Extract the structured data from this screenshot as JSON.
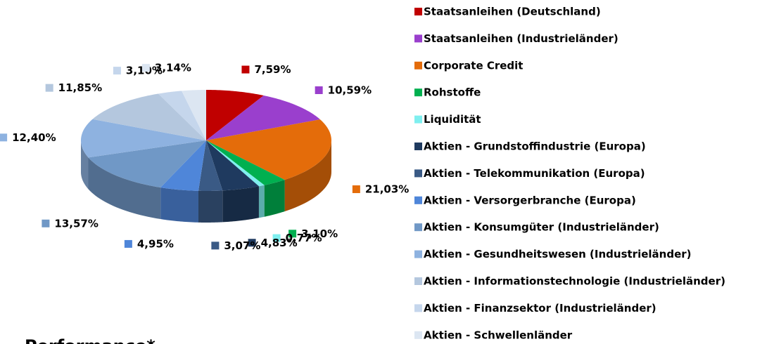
{
  "heading": "Performance*",
  "chart_data": {
    "type": "pie3d",
    "categories": [
      "Staatsanleihen (Deutschland)",
      "Staatsanleihen (Industrieländer)",
      "Corporate Credit",
      "Rohstoffe",
      "Liquidität",
      "Aktien - Grundstoffindustrie (Europa)",
      "Aktien - Telekommunikation (Europa)",
      "Aktien - Versorgerbranche (Europa)",
      "Aktien - Konsumgüter (Industrieländer)",
      "Aktien - Gesundheitswesen (Industrieländer)",
      "Aktien - Informationstechnologie (Industrieländer)",
      "Aktien - Finanzsektor (Industrieländer)",
      "Aktien - Schwellenländer"
    ],
    "values": [
      7.59,
      10.59,
      21.03,
      3.1,
      0.77,
      4.83,
      3.07,
      4.95,
      13.57,
      12.4,
      11.85,
      3.1,
      3.14
    ],
    "value_labels": [
      "7,59%",
      "10,59%",
      "21,03%",
      "3,10%",
      "0,77%",
      "4,83%",
      "3,07%",
      "4,95%",
      "13,57%",
      "12,40%",
      "11,85%",
      "3,10%",
      "3,14%"
    ],
    "colors": [
      "#c00000",
      "#9a3fcd",
      "#e46c0a",
      "#00b050",
      "#7fefef",
      "#1f3a5f",
      "#3a5a85",
      "#4f86d9",
      "#7098c6",
      "#8eb2e0",
      "#b4c7de",
      "#c5d6ec",
      "#dce6f2"
    ],
    "legend": "right"
  }
}
